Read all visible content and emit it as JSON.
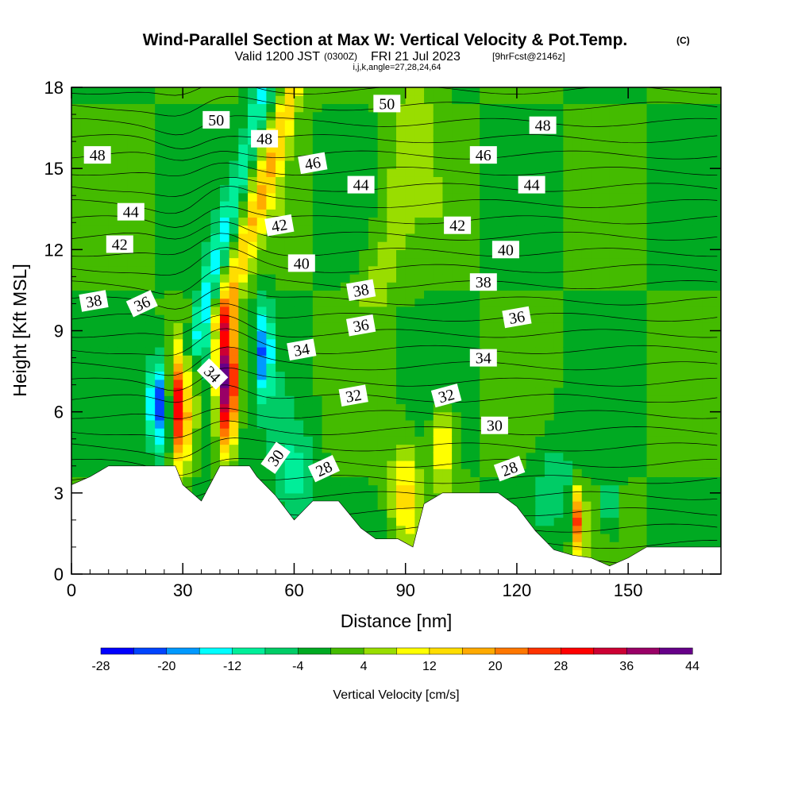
{
  "chart_data": {
    "type": "heatmap",
    "title": "Wind-Parallel Section at Max W: Vertical Velocity & Pot.Temp.",
    "title_mark": "(C)",
    "subtitle": {
      "valid": "Valid 1200 JST",
      "utc": "(0300Z)",
      "date": "FRI 21 Jul 2023",
      "forecast": "[9hrFcst@2146z]"
    },
    "indices": "i,j,k,angle=27,28,24,64",
    "xlabel": "Distance [nm]",
    "ylabel": "Height [Kft MSL]",
    "xlim": [
      0,
      175
    ],
    "ylim": [
      0,
      18
    ],
    "x_ticks": [
      "0",
      "30",
      "60",
      "90",
      "120",
      "150"
    ],
    "x_tick_values": [
      0,
      30,
      60,
      90,
      120,
      150
    ],
    "y_ticks": [
      "0",
      "3",
      "6",
      "9",
      "12",
      "15",
      "18"
    ],
    "y_tick_values": [
      0,
      3,
      6,
      9,
      12,
      15,
      18
    ],
    "colorbar": {
      "title": "Vertical Velocity [cm/s]",
      "tick_labels": [
        "-28",
        "-20",
        "-12",
        "-4",
        "4",
        "12",
        "20",
        "28",
        "36",
        "44"
      ],
      "colors": [
        "#0000ff",
        "#0044ff",
        "#0099ff",
        "#00ffff",
        "#00ee99",
        "#00cc66",
        "#00aa22",
        "#44bb00",
        "#99dd00",
        "#ffff00",
        "#ffdd00",
        "#ffaa00",
        "#ff7700",
        "#ff3300",
        "#ff0000",
        "#cc0033",
        "#990066",
        "#660088"
      ],
      "min": -28,
      "max": 48,
      "step": 4
    },
    "terrain": [
      [
        0,
        3.3
      ],
      [
        5,
        3.6
      ],
      [
        10,
        4.0
      ],
      [
        28,
        4.0
      ],
      [
        30,
        3.3
      ],
      [
        35,
        2.7
      ],
      [
        40,
        4.0
      ],
      [
        48,
        4.0
      ],
      [
        50,
        3.6
      ],
      [
        55,
        2.9
      ],
      [
        60,
        2.0
      ],
      [
        65,
        2.7
      ],
      [
        72,
        2.7
      ],
      [
        78,
        1.7
      ],
      [
        82,
        1.3
      ],
      [
        88,
        1.3
      ],
      [
        92,
        1.0
      ],
      [
        95,
        2.6
      ],
      [
        100,
        3.0
      ],
      [
        115,
        3.0
      ],
      [
        120,
        2.5
      ],
      [
        125,
        1.6
      ],
      [
        130,
        0.9
      ],
      [
        135,
        0.7
      ],
      [
        140,
        0.6
      ],
      [
        145,
        0.3
      ],
      [
        150,
        0.6
      ],
      [
        155,
        1.0
      ],
      [
        175,
        1.0
      ]
    ],
    "theta_contour_labels": [
      {
        "text": "50",
        "x": 39,
        "y": 16.8,
        "angle": 0
      },
      {
        "text": "50",
        "x": 85,
        "y": 17.4,
        "angle": 0
      },
      {
        "text": "48",
        "x": 7,
        "y": 15.5,
        "angle": 0
      },
      {
        "text": "48",
        "x": 52,
        "y": 16.1,
        "angle": 0
      },
      {
        "text": "48",
        "x": 127,
        "y": 16.6,
        "angle": 0
      },
      {
        "text": "46",
        "x": 65,
        "y": 15.2,
        "angle": -10
      },
      {
        "text": "46",
        "x": 111,
        "y": 15.5,
        "angle": 0
      },
      {
        "text": "44",
        "x": 16,
        "y": 13.4,
        "angle": 0
      },
      {
        "text": "44",
        "x": 78,
        "y": 14.4,
        "angle": 0
      },
      {
        "text": "44",
        "x": 124,
        "y": 14.4,
        "angle": 0
      },
      {
        "text": "42",
        "x": 13,
        "y": 12.2,
        "angle": 0
      },
      {
        "text": "42",
        "x": 56,
        "y": 12.9,
        "angle": -10
      },
      {
        "text": "42",
        "x": 104,
        "y": 12.9,
        "angle": 0
      },
      {
        "text": "40",
        "x": 62,
        "y": 11.5,
        "angle": 0
      },
      {
        "text": "40",
        "x": 117,
        "y": 12.0,
        "angle": 0
      },
      {
        "text": "38",
        "x": 6,
        "y": 10.1,
        "angle": -10
      },
      {
        "text": "38",
        "x": 78,
        "y": 10.5,
        "angle": -10
      },
      {
        "text": "38",
        "x": 111,
        "y": 10.8,
        "angle": 0
      },
      {
        "text": "36",
        "x": 19,
        "y": 10.0,
        "angle": -25
      },
      {
        "text": "36",
        "x": 78,
        "y": 9.2,
        "angle": -10
      },
      {
        "text": "36",
        "x": 120,
        "y": 9.5,
        "angle": -10
      },
      {
        "text": "34",
        "x": 38,
        "y": 7.4,
        "angle": 45
      },
      {
        "text": "34",
        "x": 62,
        "y": 8.3,
        "angle": -10
      },
      {
        "text": "34",
        "x": 111,
        "y": 8.0,
        "angle": 0
      },
      {
        "text": "32",
        "x": 76,
        "y": 6.6,
        "angle": -10
      },
      {
        "text": "32",
        "x": 101,
        "y": 6.6,
        "angle": -15
      },
      {
        "text": "30",
        "x": 55,
        "y": 4.3,
        "angle": -55
      },
      {
        "text": "30",
        "x": 114,
        "y": 5.5,
        "angle": 0
      },
      {
        "text": "28",
        "x": 68,
        "y": 3.9,
        "angle": -25
      },
      {
        "text": "28",
        "x": 118,
        "y": 3.9,
        "angle": -20
      }
    ],
    "updrafts_downdrafts": [
      {
        "x": 23,
        "y": 6.3,
        "w_peak": -28
      },
      {
        "x": 29.5,
        "y": 6.3,
        "w_peak": 36
      },
      {
        "x": 36,
        "y": 7.5,
        "w_peak": -12
      },
      {
        "x": 42,
        "y": 7.2,
        "w_peak": 44
      },
      {
        "x": 52,
        "y": 8.3,
        "w_peak": -20
      },
      {
        "x": 100,
        "y": 4.8,
        "w_peak": 16
      },
      {
        "x": 137,
        "y": 2.0,
        "w_peak": 36
      },
      {
        "x": 145,
        "y": 2.5,
        "w_peak": -12
      }
    ]
  }
}
